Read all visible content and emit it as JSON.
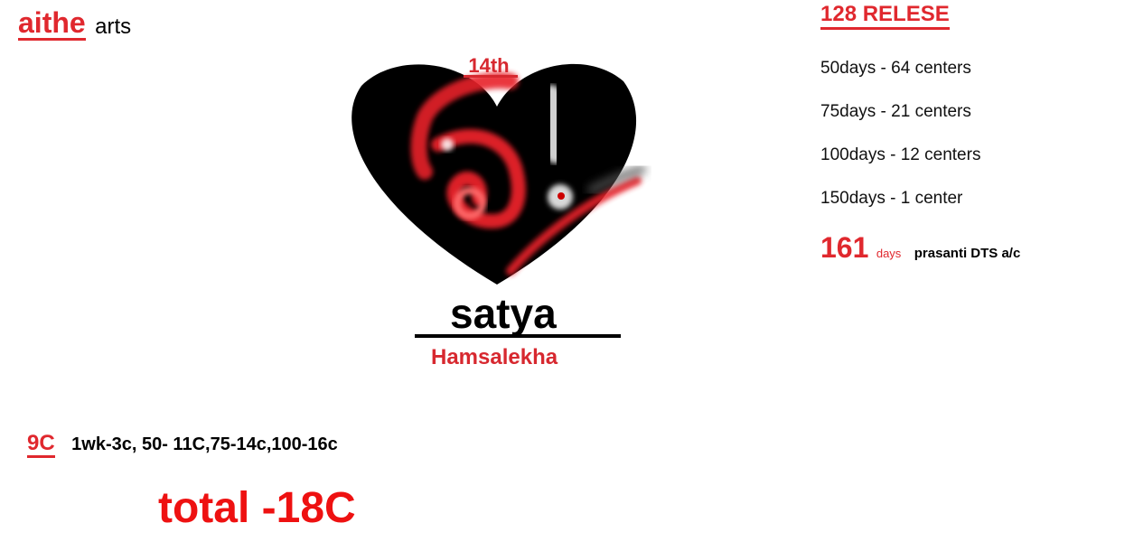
{
  "brand": {
    "name": "aithe",
    "suffix": "arts"
  },
  "logo": {
    "label": "14th"
  },
  "movie": {
    "title": "satya",
    "composer": "Hamsalekha"
  },
  "release": {
    "heading": "128 RELESE",
    "runs": [
      "50days - 64 centers",
      "75days - 21 centers",
      "100days - 12 centers",
      "150days - 1 center"
    ],
    "final": {
      "number": "161",
      "unit": "days",
      "note": "prasanti DTS a/c"
    }
  },
  "collection": {
    "badge": "9C",
    "detail": "1wk-3c, 50- 11C,75-14c,100-16c",
    "total": "total -18C"
  },
  "colors": {
    "accent": "#e0282e",
    "heart": "#000000",
    "background": "#ffffff"
  }
}
